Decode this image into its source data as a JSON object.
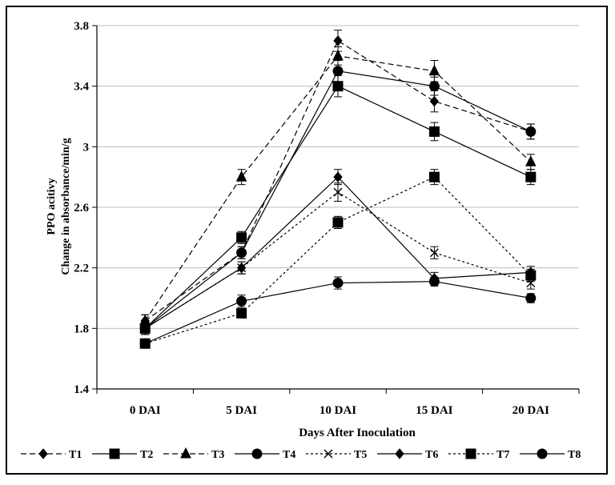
{
  "chart_data": {
    "type": "line",
    "xlabel": "Days After Inoculation",
    "ylabel_line1": "PPO acitivy",
    "ylabel_line2": "Change in absorbance/min/g",
    "categories": [
      "0 DAI",
      "5 DAI",
      "10 DAI",
      "15 DAI",
      "20 DAI"
    ],
    "ylim": [
      1.4,
      3.8
    ],
    "yticks": [
      "1.4",
      "1.8",
      "2.2",
      "2.6",
      "3",
      "3.4",
      "3.8"
    ],
    "grid": "horizontal",
    "legend_position": "bottom",
    "series": [
      {
        "name": "T1",
        "marker": "diamond",
        "dash": "dashed",
        "values": [
          1.85,
          2.3,
          3.7,
          3.3,
          3.1
        ],
        "errors": [
          0.04,
          0.04,
          0.07,
          0.07,
          0.05
        ]
      },
      {
        "name": "T2",
        "marker": "square",
        "dash": "solid",
        "values": [
          1.8,
          2.4,
          3.4,
          3.1,
          2.8
        ],
        "errors": [
          0.04,
          0.04,
          0.07,
          0.06,
          0.05
        ]
      },
      {
        "name": "T3",
        "marker": "triangle",
        "dash": "dashed",
        "values": [
          1.85,
          2.8,
          3.6,
          3.5,
          2.9
        ],
        "errors": [
          0.04,
          0.05,
          0.06,
          0.07,
          0.05
        ]
      },
      {
        "name": "T4",
        "marker": "circle",
        "dash": "solid",
        "values": [
          1.8,
          2.3,
          3.5,
          3.4,
          3.1
        ],
        "errors": [
          0.04,
          0.04,
          0.07,
          0.06,
          0.05
        ]
      },
      {
        "name": "T5",
        "marker": "x",
        "dash": "dotted",
        "values": [
          1.8,
          2.2,
          2.7,
          2.3,
          2.1
        ],
        "errors": [
          0.04,
          0.04,
          0.06,
          0.04,
          0.04
        ]
      },
      {
        "name": "T6",
        "marker": "diamond",
        "dash": "solid",
        "values": [
          1.8,
          2.2,
          2.8,
          2.13,
          2.17
        ],
        "errors": [
          0.04,
          0.04,
          0.05,
          0.04,
          0.04
        ]
      },
      {
        "name": "T7",
        "marker": "square",
        "dash": "dotted",
        "values": [
          1.7,
          1.9,
          2.5,
          2.8,
          2.15
        ],
        "errors": [
          0.03,
          0.03,
          0.04,
          0.05,
          0.04
        ]
      },
      {
        "name": "T8",
        "marker": "circle",
        "dash": "solid",
        "values": [
          1.7,
          1.98,
          2.1,
          2.11,
          2.0
        ],
        "errors": [
          0.03,
          0.04,
          0.04,
          0.03,
          0.03
        ]
      }
    ]
  }
}
